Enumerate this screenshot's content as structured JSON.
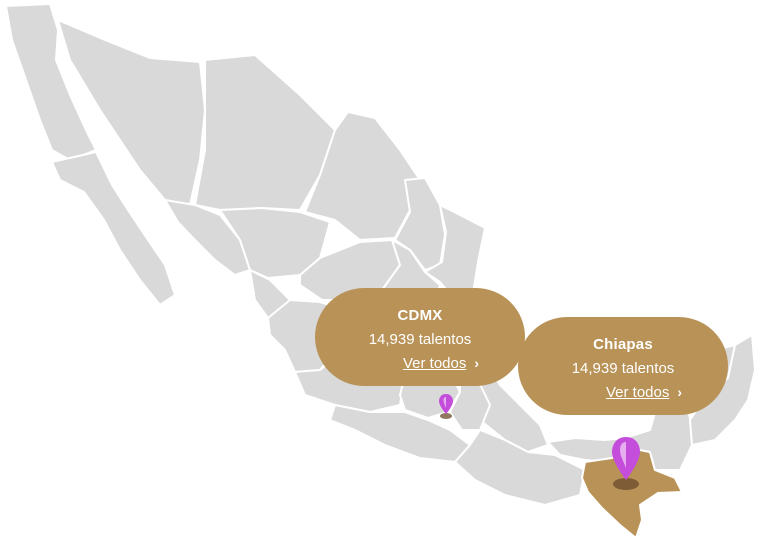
{
  "colors": {
    "land": "#d9d9d9",
    "highlight": "#b99257",
    "border": "#ffffff",
    "pin": "#c44ddb",
    "text": "#ffffff"
  },
  "map": {
    "highlighted_region": "Chiapas"
  },
  "callouts": [
    {
      "region": "CDMX",
      "count": "14,939 talentos",
      "link": "Ver todos",
      "icon": "chevron-right-icon"
    },
    {
      "region": "Chiapas",
      "count": "14,939 talentos",
      "link": "Ver todos",
      "icon": "chevron-right-icon"
    }
  ],
  "markers": [
    {
      "region": "CDMX",
      "icon": "location-pin-icon"
    },
    {
      "region": "Chiapas",
      "icon": "location-pin-icon"
    }
  ]
}
